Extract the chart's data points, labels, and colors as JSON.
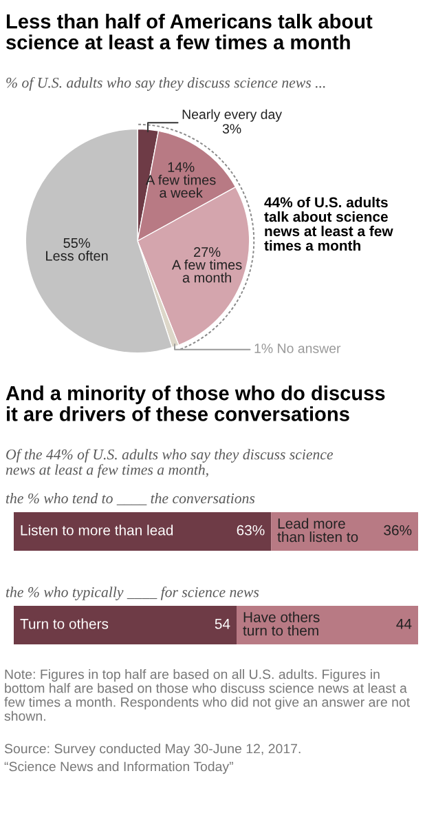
{
  "chart_data": [
    {
      "type": "pie",
      "title": "Less than half of Americans talk about\nscience at least a few times a month",
      "subtitle": "% of U.S. adults who say they discuss science news ...",
      "categories": [
        "Nearly every day",
        "A few times\na week",
        "A few times\na month",
        "No answer",
        "Less often"
      ],
      "values": [
        3,
        14,
        27,
        1,
        55
      ],
      "colors": [
        "#6e3b46",
        "#b87a84",
        "#d4a5ad",
        "#dcd6c8",
        "#c3c3c3"
      ],
      "value_labels": [
        "3%",
        "14%",
        "27%",
        "1%",
        "55%"
      ],
      "annotations": [
        "44% of U.S. adults\ntalk about science\nnews at least a few\ntimes a month"
      ]
    },
    {
      "type": "bar",
      "orientation": "horizontal",
      "stacked": true,
      "title": "And a minority of those who do discuss\nit are drivers of these conversations",
      "subtitle": "Of the 44% of U.S. adults who say they discuss science\nnews at least a few times a month,",
      "categories": [
        "the % who tend to ____ the conversations"
      ],
      "series": [
        {
          "name": "Listen to more than lead",
          "color": "#6e3b46",
          "values": [
            63
          ],
          "value_labels": [
            "63%"
          ]
        },
        {
          "name": "Lead more\nthan listen to",
          "color": "#b87a84",
          "values": [
            36
          ],
          "value_labels": [
            "36%"
          ]
        }
      ]
    },
    {
      "type": "bar",
      "orientation": "horizontal",
      "stacked": true,
      "categories": [
        "the % who typically ____ for science news"
      ],
      "series": [
        {
          "name": "Turn to others",
          "color": "#6e3b46",
          "values": [
            54
          ],
          "value_labels": [
            "54"
          ]
        },
        {
          "name": "Have others\nturn to them",
          "color": "#b87a84",
          "values": [
            44
          ],
          "value_labels": [
            "44"
          ]
        }
      ],
      "annotations": [
        "Note: Figures in top half are based on all U.S. adults. Figures in bottom half are based on those who discuss science news at least a few times a month. Respondents who did not give an answer are not shown.",
        "Source: Survey conducted May 30-June 12, 2017.",
        "“Science News and Information Today”"
      ]
    }
  ]
}
